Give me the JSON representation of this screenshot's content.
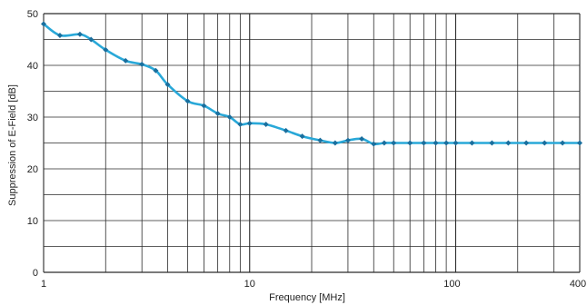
{
  "chart_data": {
    "type": "line",
    "title": "",
    "xlabel": "Frequency [MHz]",
    "ylabel": "Suppression of E-Field [dB]",
    "x_scale": "log",
    "xlim": [
      1,
      400
    ],
    "ylim": [
      0,
      50
    ],
    "grid": true,
    "x_tick_labels": [
      {
        "value": 1,
        "label": "1"
      },
      {
        "value": 10,
        "label": "10"
      },
      {
        "value": 100,
        "label": "100"
      },
      {
        "value": 400,
        "label": "400"
      }
    ],
    "y_tick_labels": [
      {
        "value": 0,
        "label": "0"
      },
      {
        "value": 10,
        "label": "10"
      },
      {
        "value": 20,
        "label": "20"
      },
      {
        "value": 30,
        "label": "30"
      },
      {
        "value": 40,
        "label": "40"
      },
      {
        "value": 50,
        "label": "50"
      }
    ],
    "series": [
      {
        "color": "#29a8d8",
        "marker_color": "#1a6f9e",
        "x": [
          1,
          1.2,
          1.5,
          1.7,
          2,
          2.5,
          3,
          3.5,
          4,
          5,
          6,
          7,
          8,
          9,
          10,
          12,
          15,
          18,
          22,
          26,
          30,
          35,
          40,
          45,
          50,
          60,
          70,
          80,
          90,
          100,
          120,
          150,
          180,
          220,
          270,
          330,
          400
        ],
        "y": [
          48,
          45.8,
          46,
          45,
          43,
          40.9,
          40.2,
          39,
          36.3,
          33.1,
          32.2,
          30.7,
          30,
          28.6,
          28.8,
          28.6,
          27.4,
          26.3,
          25.5,
          25,
          25.5,
          25.8,
          24.8,
          25,
          25,
          25,
          25,
          25,
          25,
          25,
          25,
          25,
          25,
          25,
          25,
          25,
          25
        ]
      }
    ]
  }
}
